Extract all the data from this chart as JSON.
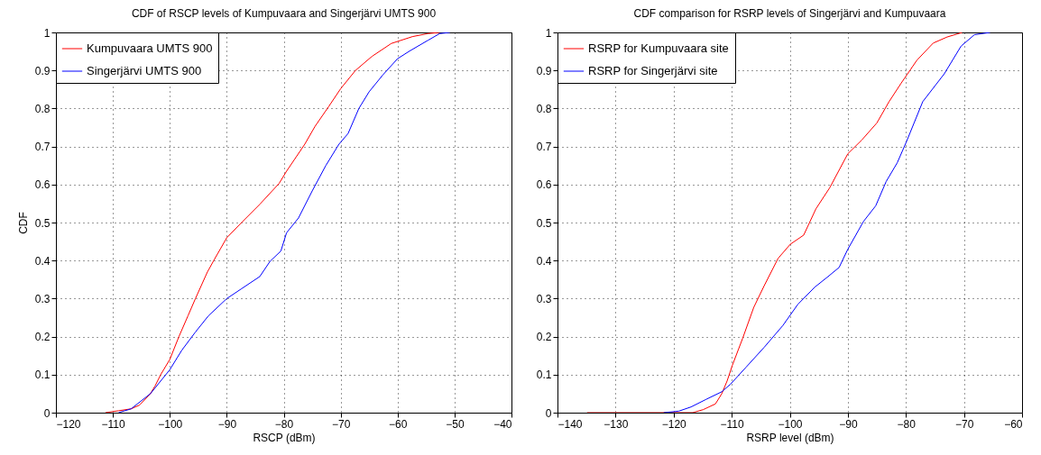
{
  "chart_data": [
    {
      "type": "line",
      "title": "CDF of RSCP levels of Kumpuvaara and Singerjärvi UMTS 900",
      "xlabel": "RSCP (dBm)",
      "ylabel": "CDF",
      "xlim": [
        -120,
        -40
      ],
      "xticks": [
        -120,
        -110,
        -100,
        -90,
        -80,
        -70,
        -60,
        -50,
        -40
      ],
      "ylim": [
        0,
        1
      ],
      "yticks": [
        0,
        0.1,
        0.2,
        0.3,
        0.4,
        0.5,
        0.6,
        0.7,
        0.8,
        0.9,
        1
      ],
      "grid": true,
      "legend": "top left",
      "series": [
        {
          "name": "Kumpuvaara UMTS 900",
          "color": "#ff0000",
          "x": [
            -111.3,
            -109,
            -106.8,
            -105.3,
            -103.4,
            -102.6,
            -101.6,
            -100,
            -98.4,
            -96.8,
            -95.5,
            -93.4,
            -92.1,
            -90,
            -87.4,
            -84.2,
            -80.8,
            -79.5,
            -76.3,
            -74.5,
            -72.1,
            -70,
            -67.4,
            -64.5,
            -61.1,
            -57.4,
            -54.7,
            -52.6
          ],
          "values": [
            0,
            0.005,
            0.01,
            0.02,
            0.05,
            0.07,
            0.1,
            0.14,
            0.2,
            0.255,
            0.3,
            0.37,
            0.405,
            0.46,
            0.5,
            0.548,
            0.603,
            0.635,
            0.706,
            0.753,
            0.805,
            0.852,
            0.9,
            0.937,
            0.971,
            0.989,
            0.997,
            1
          ]
        },
        {
          "name": "Singerjärvi UMTS 900",
          "color": "#0000ff",
          "x": [
            -109,
            -106.8,
            -103.4,
            -100,
            -97.9,
            -95.5,
            -93.2,
            -90,
            -87.4,
            -84.2,
            -82.4,
            -80.5,
            -79.5,
            -77.4,
            -75,
            -72.6,
            -70.3,
            -68.7,
            -66.8,
            -65,
            -62.6,
            -60,
            -57.9,
            -54.7,
            -52.6,
            -50.8
          ],
          "values": [
            0,
            0.01,
            0.05,
            0.113,
            0.164,
            0.212,
            0.255,
            0.3,
            0.326,
            0.358,
            0.398,
            0.425,
            0.473,
            0.512,
            0.583,
            0.65,
            0.706,
            0.734,
            0.8,
            0.844,
            0.888,
            0.931,
            0.951,
            0.979,
            0.997,
            1
          ]
        }
      ]
    },
    {
      "type": "line",
      "title": "CDF comparison for RSRP levels of Singerjärvi and Kumpuvaara",
      "xlabel": "RSRP level (dBm)",
      "xlim": [
        -140,
        -60
      ],
      "xticks": [
        -140,
        -130,
        -120,
        -110,
        -100,
        -90,
        -80,
        -70,
        -60
      ],
      "ylim": [
        0,
        1
      ],
      "yticks": [
        0,
        0.1,
        0.2,
        0.3,
        0.4,
        0.5,
        0.6,
        0.7,
        0.8,
        0.9,
        1
      ],
      "grid": true,
      "legend": "top left",
      "series": [
        {
          "name": "RSRP for Kumpuvaara site",
          "color": "#ff0000",
          "x": [
            -134.9,
            -116.7,
            -114.9,
            -112.8,
            -111.7,
            -110.8,
            -109.9,
            -108.1,
            -106.2,
            -104.4,
            -102,
            -99.9,
            -97.6,
            -95.5,
            -93.1,
            -90,
            -87.6,
            -85,
            -82.9,
            -80.8,
            -78.1,
            -75.3,
            -72.9,
            -70.3
          ],
          "values": [
            0,
            0,
            0.008,
            0.023,
            0.05,
            0.083,
            0.124,
            0.196,
            0.277,
            0.334,
            0.406,
            0.443,
            0.467,
            0.536,
            0.592,
            0.681,
            0.717,
            0.762,
            0.818,
            0.867,
            0.927,
            0.972,
            0.988,
            1
          ]
        },
        {
          "name": "RSRP for Singerjärvi site",
          "color": "#0000ff",
          "x": [
            -121.7,
            -119.1,
            -117,
            -114.4,
            -111.7,
            -110.2,
            -107.5,
            -104.4,
            -101.2,
            -98.6,
            -95.7,
            -93.4,
            -91.5,
            -90,
            -87.3,
            -85.2,
            -83.4,
            -81.5,
            -79.9,
            -77.1,
            -73.4,
            -70.5,
            -68.2,
            -65.5
          ],
          "values": [
            0,
            0.004,
            0.015,
            0.035,
            0.055,
            0.075,
            0.12,
            0.172,
            0.229,
            0.285,
            0.33,
            0.358,
            0.382,
            0.43,
            0.503,
            0.544,
            0.608,
            0.657,
            0.713,
            0.818,
            0.891,
            0.964,
            0.994,
            1
          ]
        }
      ]
    }
  ]
}
